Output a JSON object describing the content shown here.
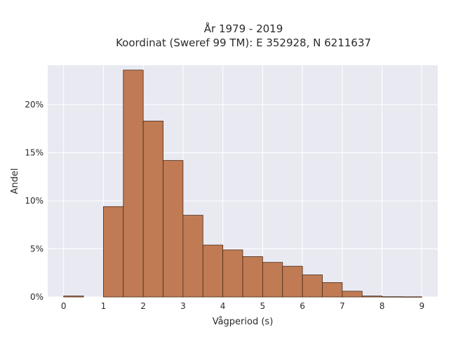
{
  "chart_data": {
    "type": "bar",
    "title_lines": [
      "År 1979 - 2019",
      "Koordinat (Sweref 99 TM): E 352928, N 6211637"
    ],
    "xlabel": "Vågperiod (s)",
    "ylabel": "Andel",
    "xlim": [
      -0.4,
      9.4
    ],
    "ylim": [
      0,
      0.241
    ],
    "x_ticks": [
      0,
      1,
      2,
      3,
      4,
      5,
      6,
      7,
      8,
      9
    ],
    "x_tick_labels": [
      "0",
      "1",
      "2",
      "3",
      "4",
      "5",
      "6",
      "7",
      "8",
      "9"
    ],
    "y_ticks": [
      0,
      0.05,
      0.1,
      0.15,
      0.2
    ],
    "y_tick_labels": [
      "0%",
      "5%",
      "10%",
      "15%",
      "20%"
    ],
    "bin_width": 0.5,
    "bins": [
      {
        "x0": 0.0,
        "x1": 0.5,
        "value": 0.001
      },
      {
        "x0": 0.5,
        "x1": 1.0,
        "value": 0.0
      },
      {
        "x0": 1.0,
        "x1": 1.5,
        "value": 0.094
      },
      {
        "x0": 1.5,
        "x1": 2.0,
        "value": 0.236
      },
      {
        "x0": 2.0,
        "x1": 2.5,
        "value": 0.183
      },
      {
        "x0": 2.5,
        "x1": 3.0,
        "value": 0.142
      },
      {
        "x0": 3.0,
        "x1": 3.5,
        "value": 0.085
      },
      {
        "x0": 3.5,
        "x1": 4.0,
        "value": 0.054
      },
      {
        "x0": 4.0,
        "x1": 4.5,
        "value": 0.049
      },
      {
        "x0": 4.5,
        "x1": 5.0,
        "value": 0.042
      },
      {
        "x0": 5.0,
        "x1": 5.5,
        "value": 0.036
      },
      {
        "x0": 5.5,
        "x1": 6.0,
        "value": 0.032
      },
      {
        "x0": 6.0,
        "x1": 6.5,
        "value": 0.023
      },
      {
        "x0": 6.5,
        "x1": 7.0,
        "value": 0.015
      },
      {
        "x0": 7.0,
        "x1": 7.5,
        "value": 0.006
      },
      {
        "x0": 7.5,
        "x1": 8.0,
        "value": 0.001
      },
      {
        "x0": 8.0,
        "x1": 8.5,
        "value": 0.0003
      },
      {
        "x0": 8.5,
        "x1": 9.0,
        "value": 0.0002
      }
    ],
    "grid": true,
    "legend": "none",
    "colors": {
      "plot_background": "#e9e9f2",
      "grid": "#ffffff",
      "bar_fill": "#c07b54",
      "bar_edge": "#4a2a18"
    }
  }
}
